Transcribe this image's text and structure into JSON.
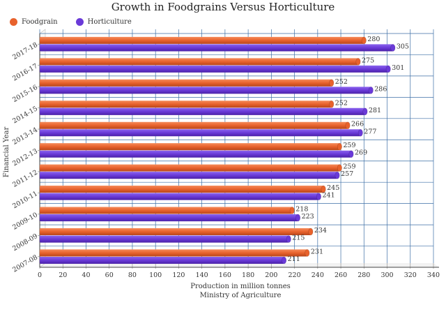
{
  "chart_data": {
    "type": "bar",
    "orientation": "horizontal",
    "title": "Growth in Foodgrains Versus Horticulture",
    "xlabel": "Production in million tonnes",
    "source": "Ministry of Agriculture",
    "ylabel": "Financial Year",
    "categories": [
      "2007-08",
      "2008-09",
      "2009-10",
      "2010-11",
      "2011-12",
      "2012-13",
      "2013-14",
      "2014-15",
      "2015-16",
      "2016-17",
      "2017-18"
    ],
    "series": [
      {
        "name": "Foodgrain",
        "color": "#e8622c",
        "values": [
          231,
          234,
          218,
          245,
          259,
          259,
          266,
          252,
          252,
          275,
          280
        ]
      },
      {
        "name": "Horticulture",
        "color": "#6a3ad8",
        "values": [
          211,
          215,
          223,
          241,
          257,
          269,
          277,
          281,
          286,
          301,
          305
        ]
      }
    ],
    "xlim": [
      0,
      340
    ],
    "xticks": [
      0,
      20,
      40,
      60,
      80,
      100,
      120,
      140,
      160,
      180,
      200,
      220,
      240,
      260,
      280,
      300,
      320,
      340
    ],
    "grid": true,
    "legend_position": "top-left"
  }
}
